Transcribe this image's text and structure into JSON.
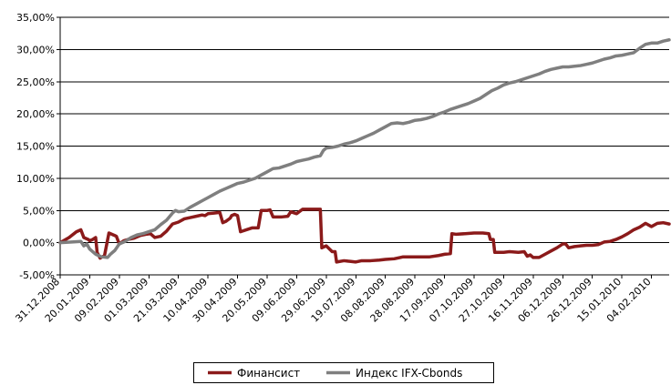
{
  "chart_data": {
    "type": "line",
    "ylim": [
      -5,
      35
    ],
    "yticks": [
      "-5,00%",
      "0,00%",
      "5,00%",
      "10,00%",
      "15,00%",
      "20,00%",
      "25,00%",
      "30,00%",
      "35,00%"
    ],
    "ytick_values": [
      -5,
      0,
      5,
      10,
      15,
      20,
      25,
      30,
      35
    ],
    "xticks": [
      "31.12.2008",
      "20.01.2009",
      "09.02.2009",
      "01.03.2009",
      "21.03.2009",
      "10.04.2009",
      "30.04.2009",
      "20.05.2009",
      "09.06.2009",
      "29.06.2009",
      "19.07.2009",
      "08.08.2009",
      "28.08.2009",
      "17.09.2009",
      "07.10.2009",
      "27.10.2009",
      "16.11.2009",
      "06.12.2009",
      "26.12.2009",
      "15.01.2010",
      "04.02.2010"
    ],
    "xlim": [
      0,
      20.6
    ],
    "grid": "horizontal",
    "legend_position": "bottom",
    "series": [
      {
        "name": "Финансист",
        "color": "#8b1a1a",
        "points": [
          [
            0,
            0
          ],
          [
            0.3,
            0.8
          ],
          [
            0.55,
            1.7
          ],
          [
            0.7,
            2.0
          ],
          [
            0.8,
            0.8
          ],
          [
            0.95,
            0.5
          ],
          [
            1.0,
            0.3
          ],
          [
            1.1,
            0.5
          ],
          [
            1.2,
            0.8
          ],
          [
            1.25,
            -1.5
          ],
          [
            1.35,
            -2.4
          ],
          [
            1.5,
            -2.0
          ],
          [
            1.65,
            1.5
          ],
          [
            1.8,
            1.2
          ],
          [
            1.9,
            1.0
          ],
          [
            2.0,
            -0.2
          ],
          [
            2.15,
            0.3
          ],
          [
            2.3,
            0.5
          ],
          [
            2.5,
            0.7
          ],
          [
            2.7,
            1.1
          ],
          [
            2.9,
            1.3
          ],
          [
            3.05,
            1.4
          ],
          [
            3.2,
            0.8
          ],
          [
            3.4,
            1.0
          ],
          [
            3.6,
            1.8
          ],
          [
            3.8,
            2.9
          ],
          [
            4.0,
            3.2
          ],
          [
            4.2,
            3.7
          ],
          [
            4.4,
            3.9
          ],
          [
            4.6,
            4.1
          ],
          [
            4.8,
            4.3
          ],
          [
            4.9,
            4.2
          ],
          [
            5.0,
            4.5
          ],
          [
            5.2,
            4.6
          ],
          [
            5.4,
            4.7
          ],
          [
            5.5,
            3.1
          ],
          [
            5.6,
            3.3
          ],
          [
            5.75,
            3.8
          ],
          [
            5.8,
            4.2
          ],
          [
            5.9,
            4.4
          ],
          [
            6.0,
            4.2
          ],
          [
            6.1,
            1.7
          ],
          [
            6.3,
            2.0
          ],
          [
            6.5,
            2.3
          ],
          [
            6.7,
            2.3
          ],
          [
            6.8,
            5.0
          ],
          [
            7.0,
            5.0
          ],
          [
            7.1,
            5.1
          ],
          [
            7.2,
            4.0
          ],
          [
            7.5,
            4.0
          ],
          [
            7.7,
            4.1
          ],
          [
            7.8,
            4.8
          ],
          [
            8.0,
            4.5
          ],
          [
            8.2,
            5.2
          ],
          [
            8.5,
            5.2
          ],
          [
            8.8,
            5.2
          ],
          [
            8.85,
            -0.8
          ],
          [
            9.0,
            -0.5
          ],
          [
            9.2,
            -1.4
          ],
          [
            9.3,
            -1.4
          ],
          [
            9.35,
            -3.0
          ],
          [
            9.6,
            -2.8
          ],
          [
            9.8,
            -2.9
          ],
          [
            10.0,
            -3.0
          ],
          [
            10.2,
            -2.8
          ],
          [
            10.5,
            -2.8
          ],
          [
            10.8,
            -2.7
          ],
          [
            11.0,
            -2.6
          ],
          [
            11.3,
            -2.5
          ],
          [
            11.5,
            -2.3
          ],
          [
            11.6,
            -2.2
          ],
          [
            12.0,
            -2.2
          ],
          [
            12.5,
            -2.2
          ],
          [
            12.8,
            -2.0
          ],
          [
            13.0,
            -1.8
          ],
          [
            13.2,
            -1.7
          ],
          [
            13.25,
            1.4
          ],
          [
            13.4,
            1.3
          ],
          [
            13.7,
            1.4
          ],
          [
            14.0,
            1.5
          ],
          [
            14.3,
            1.5
          ],
          [
            14.5,
            1.4
          ],
          [
            14.55,
            0.5
          ],
          [
            14.65,
            0.5
          ],
          [
            14.7,
            -1.5
          ],
          [
            15.0,
            -1.5
          ],
          [
            15.2,
            -1.4
          ],
          [
            15.5,
            -1.5
          ],
          [
            15.7,
            -1.4
          ],
          [
            15.8,
            -2.1
          ],
          [
            15.9,
            -1.9
          ],
          [
            16.0,
            -2.3
          ],
          [
            16.2,
            -2.3
          ],
          [
            16.4,
            -1.8
          ],
          [
            16.6,
            -1.3
          ],
          [
            16.8,
            -0.8
          ],
          [
            17.0,
            -0.2
          ],
          [
            17.1,
            -0.2
          ],
          [
            17.2,
            -0.8
          ],
          [
            17.4,
            -0.6
          ],
          [
            17.6,
            -0.5
          ],
          [
            17.8,
            -0.4
          ],
          [
            18.0,
            -0.4
          ],
          [
            18.2,
            -0.3
          ],
          [
            18.4,
            0.1
          ],
          [
            18.6,
            0.2
          ],
          [
            18.8,
            0.5
          ],
          [
            19.0,
            0.9
          ],
          [
            19.2,
            1.4
          ],
          [
            19.4,
            2.0
          ],
          [
            19.6,
            2.4
          ],
          [
            19.8,
            3.0
          ],
          [
            20.0,
            2.5
          ],
          [
            20.2,
            3.0
          ],
          [
            20.4,
            3.1
          ],
          [
            20.6,
            2.9
          ]
        ]
      },
      {
        "name": "Индекс IFX-Cbonds",
        "color": "#7f7f7f",
        "points": [
          [
            0,
            0
          ],
          [
            0.4,
            0.1
          ],
          [
            0.7,
            0.2
          ],
          [
            0.8,
            -0.5
          ],
          [
            0.9,
            -0.2
          ],
          [
            1.0,
            -1.0
          ],
          [
            1.2,
            -1.8
          ],
          [
            1.4,
            -2.2
          ],
          [
            1.6,
            -2.3
          ],
          [
            1.7,
            -1.8
          ],
          [
            1.85,
            -1.2
          ],
          [
            2.0,
            -0.2
          ],
          [
            2.2,
            0.2
          ],
          [
            2.4,
            0.8
          ],
          [
            2.6,
            1.2
          ],
          [
            2.8,
            1.4
          ],
          [
            3.0,
            1.7
          ],
          [
            3.2,
            2.0
          ],
          [
            3.4,
            2.8
          ],
          [
            3.6,
            3.5
          ],
          [
            3.8,
            4.6
          ],
          [
            3.9,
            5.0
          ],
          [
            4.0,
            4.8
          ],
          [
            4.2,
            4.9
          ],
          [
            4.4,
            5.5
          ],
          [
            4.6,
            6.0
          ],
          [
            4.8,
            6.5
          ],
          [
            5.0,
            7.0
          ],
          [
            5.2,
            7.5
          ],
          [
            5.4,
            8.0
          ],
          [
            5.6,
            8.4
          ],
          [
            5.8,
            8.8
          ],
          [
            6.0,
            9.2
          ],
          [
            6.2,
            9.4
          ],
          [
            6.4,
            9.7
          ],
          [
            6.6,
            10.0
          ],
          [
            6.8,
            10.5
          ],
          [
            7.0,
            11.0
          ],
          [
            7.2,
            11.5
          ],
          [
            7.4,
            11.6
          ],
          [
            7.6,
            11.9
          ],
          [
            7.8,
            12.2
          ],
          [
            8.0,
            12.6
          ],
          [
            8.2,
            12.8
          ],
          [
            8.4,
            13.0
          ],
          [
            8.6,
            13.3
          ],
          [
            8.8,
            13.5
          ],
          [
            8.9,
            14.3
          ],
          [
            9.0,
            14.7
          ],
          [
            9.2,
            14.8
          ],
          [
            9.4,
            15.0
          ],
          [
            9.6,
            15.3
          ],
          [
            9.8,
            15.5
          ],
          [
            10.0,
            15.8
          ],
          [
            10.2,
            16.2
          ],
          [
            10.4,
            16.6
          ],
          [
            10.6,
            17.0
          ],
          [
            10.8,
            17.5
          ],
          [
            11.0,
            18.0
          ],
          [
            11.2,
            18.5
          ],
          [
            11.4,
            18.6
          ],
          [
            11.6,
            18.5
          ],
          [
            11.8,
            18.7
          ],
          [
            12.0,
            19.0
          ],
          [
            12.2,
            19.1
          ],
          [
            12.4,
            19.3
          ],
          [
            12.6,
            19.6
          ],
          [
            12.8,
            20.0
          ],
          [
            13.0,
            20.3
          ],
          [
            13.2,
            20.7
          ],
          [
            13.4,
            21.0
          ],
          [
            13.6,
            21.3
          ],
          [
            13.8,
            21.6
          ],
          [
            14.0,
            22.0
          ],
          [
            14.2,
            22.4
          ],
          [
            14.4,
            23.0
          ],
          [
            14.6,
            23.6
          ],
          [
            14.8,
            24.0
          ],
          [
            15.0,
            24.5
          ],
          [
            15.2,
            24.8
          ],
          [
            15.4,
            25.0
          ],
          [
            15.6,
            25.3
          ],
          [
            15.8,
            25.6
          ],
          [
            16.0,
            25.9
          ],
          [
            16.2,
            26.2
          ],
          [
            16.4,
            26.6
          ],
          [
            16.6,
            26.9
          ],
          [
            16.8,
            27.1
          ],
          [
            17.0,
            27.3
          ],
          [
            17.2,
            27.3
          ],
          [
            17.4,
            27.4
          ],
          [
            17.6,
            27.5
          ],
          [
            17.8,
            27.7
          ],
          [
            18.0,
            27.9
          ],
          [
            18.2,
            28.2
          ],
          [
            18.4,
            28.5
          ],
          [
            18.6,
            28.7
          ],
          [
            18.8,
            29.0
          ],
          [
            19.0,
            29.1
          ],
          [
            19.2,
            29.3
          ],
          [
            19.4,
            29.5
          ],
          [
            19.6,
            30.2
          ],
          [
            19.8,
            30.8
          ],
          [
            20.0,
            31.0
          ],
          [
            20.2,
            31.0
          ],
          [
            20.4,
            31.3
          ],
          [
            20.6,
            31.5
          ]
        ]
      }
    ]
  }
}
